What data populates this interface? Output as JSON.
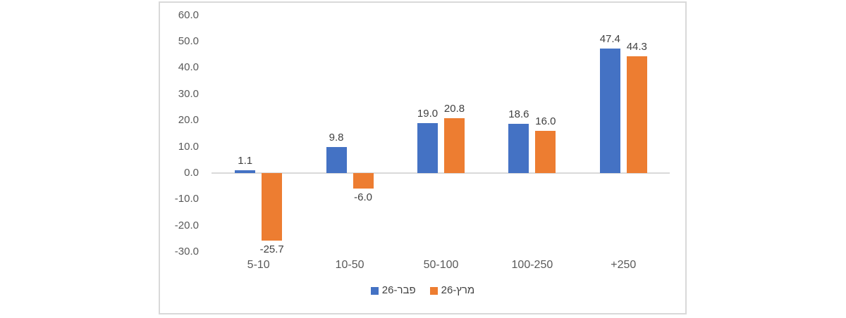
{
  "chart_data": {
    "type": "bar",
    "title": "",
    "xlabel": "",
    "ylabel": "",
    "categories": [
      "5-10",
      "10-50",
      "50-100",
      "100-250",
      "+250"
    ],
    "series": [
      {
        "name": "פבר-26",
        "color": "#4472C4",
        "values": [
          1.1,
          9.8,
          19.0,
          18.6,
          47.4
        ]
      },
      {
        "name": "מרץ-26",
        "color": "#ED7D31",
        "values": [
          -25.7,
          -6.0,
          20.8,
          16.0,
          44.3
        ]
      }
    ],
    "ylim": [
      -30,
      60
    ],
    "y_tick_step": 10,
    "y_tick_labels": [
      "60.0",
      "50.0",
      "40.0",
      "30.0",
      "20.0",
      "10.0",
      "0.0",
      "-10.0",
      "-20.0",
      "-30.0"
    ],
    "value_label_decimals": 1,
    "legend_position": "bottom",
    "gridlines": false,
    "colors": {
      "axis_line": "#D9D9D9",
      "frame_border": "#D9D9D9",
      "tick_text": "#595959",
      "category_text": "#595959",
      "value_text": "#404040",
      "background": "#ffffff"
    }
  }
}
